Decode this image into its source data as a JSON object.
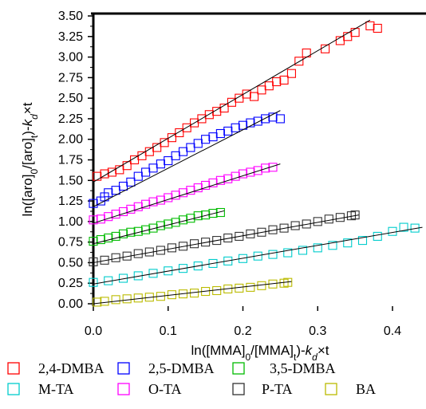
{
  "chart_data": {
    "type": "scatter",
    "xlabel": "ln([MMA]0/[MMA]t)-kd×t",
    "ylabel": "ln([aro]0/[aro]t)-kd×t",
    "xlabel_parts": [
      {
        "t": "ln([MMA]"
      },
      {
        "t": "0",
        "sub": true
      },
      {
        "t": "/[MMA]"
      },
      {
        "t": "t",
        "sub": true
      },
      {
        "t": ")-"
      },
      {
        "t": "k",
        "it": true
      },
      {
        "t": "d",
        "sub": true,
        "it": true
      },
      {
        "t": "×t"
      }
    ],
    "ylabel_parts": [
      {
        "t": "ln([aro]"
      },
      {
        "t": "0",
        "sub": true
      },
      {
        "t": "/[aro]"
      },
      {
        "t": "t",
        "sub": true
      },
      {
        "t": ")-"
      },
      {
        "t": "k",
        "it": true
      },
      {
        "t": "d",
        "sub": true,
        "it": true
      },
      {
        "t": "×t"
      }
    ],
    "xlim": [
      0,
      0.44
    ],
    "ylim": [
      0,
      3.5
    ],
    "xticks": [
      "0.0",
      "0.1",
      "0.2",
      "0.3",
      "0.4"
    ],
    "yticks": [
      "0.00",
      "0.25",
      "0.50",
      "0.75",
      "1.00",
      "1.25",
      "1.50",
      "1.75",
      "2.00",
      "2.25",
      "2.50",
      "2.75",
      "3.00",
      "3.25",
      "3.50"
    ],
    "grid": false,
    "legend_position": "bottom",
    "series": [
      {
        "name": "2,4-DMBA",
        "color": "#ff0000",
        "fit": {
          "x0": 0,
          "y0": 1.48,
          "x1": 0.37,
          "y1": 3.45
        },
        "points": [
          [
            0.005,
            1.55
          ],
          [
            0.015,
            1.58
          ],
          [
            0.025,
            1.6
          ],
          [
            0.035,
            1.63
          ],
          [
            0.045,
            1.68
          ],
          [
            0.055,
            1.75
          ],
          [
            0.065,
            1.8
          ],
          [
            0.075,
            1.85
          ],
          [
            0.085,
            1.9
          ],
          [
            0.095,
            1.96
          ],
          [
            0.105,
            2.02
          ],
          [
            0.115,
            2.08
          ],
          [
            0.125,
            2.14
          ],
          [
            0.135,
            2.2
          ],
          [
            0.145,
            2.25
          ],
          [
            0.155,
            2.3
          ],
          [
            0.165,
            2.34
          ],
          [
            0.175,
            2.38
          ],
          [
            0.185,
            2.45
          ],
          [
            0.195,
            2.5
          ],
          [
            0.205,
            2.55
          ],
          [
            0.215,
            2.52
          ],
          [
            0.225,
            2.6
          ],
          [
            0.235,
            2.65
          ],
          [
            0.245,
            2.7
          ],
          [
            0.255,
            2.72
          ],
          [
            0.265,
            2.8
          ],
          [
            0.275,
            2.95
          ],
          [
            0.285,
            3.05
          ],
          [
            0.31,
            3.1
          ],
          [
            0.33,
            3.2
          ],
          [
            0.34,
            3.25
          ],
          [
            0.35,
            3.3
          ],
          [
            0.37,
            3.38
          ],
          [
            0.38,
            3.35
          ]
        ]
      },
      {
        "name": "2,5-DMBA",
        "color": "#0000ff",
        "fit": {
          "x0": 0,
          "y0": 1.18,
          "x1": 0.25,
          "y1": 2.35
        },
        "points": [
          [
            0.0,
            1.22
          ],
          [
            0.01,
            1.25
          ],
          [
            0.015,
            1.3
          ],
          [
            0.02,
            1.35
          ],
          [
            0.03,
            1.38
          ],
          [
            0.04,
            1.43
          ],
          [
            0.05,
            1.48
          ],
          [
            0.06,
            1.55
          ],
          [
            0.07,
            1.6
          ],
          [
            0.08,
            1.65
          ],
          [
            0.09,
            1.7
          ],
          [
            0.1,
            1.74
          ],
          [
            0.11,
            1.8
          ],
          [
            0.12,
            1.85
          ],
          [
            0.13,
            1.9
          ],
          [
            0.14,
            1.95
          ],
          [
            0.15,
            2.0
          ],
          [
            0.16,
            2.03
          ],
          [
            0.17,
            2.07
          ],
          [
            0.18,
            2.1
          ],
          [
            0.19,
            2.14
          ],
          [
            0.2,
            2.17
          ],
          [
            0.21,
            2.2
          ],
          [
            0.22,
            2.22
          ],
          [
            0.23,
            2.25
          ],
          [
            0.24,
            2.27
          ],
          [
            0.25,
            2.25
          ]
        ]
      },
      {
        "name": "3,5-DMBA",
        "color": "#00bb00",
        "fit": {
          "x0": 0,
          "y0": 0.73,
          "x1": 0.175,
          "y1": 1.13
        },
        "points": [
          [
            0.0,
            0.76
          ],
          [
            0.01,
            0.78
          ],
          [
            0.02,
            0.8
          ],
          [
            0.03,
            0.82
          ],
          [
            0.04,
            0.85
          ],
          [
            0.05,
            0.87
          ],
          [
            0.06,
            0.88
          ],
          [
            0.07,
            0.9
          ],
          [
            0.08,
            0.92
          ],
          [
            0.09,
            0.95
          ],
          [
            0.1,
            0.97
          ],
          [
            0.11,
            0.99
          ],
          [
            0.12,
            1.02
          ],
          [
            0.13,
            1.04
          ],
          [
            0.14,
            1.07
          ],
          [
            0.15,
            1.08
          ],
          [
            0.16,
            1.1
          ],
          [
            0.17,
            1.11
          ]
        ]
      },
      {
        "name": "M-TA",
        "color": "#00cccc",
        "fit": {
          "x0": 0,
          "y0": 0.24,
          "x1": 0.44,
          "y1": 0.93
        },
        "points": [
          [
            0.0,
            0.26
          ],
          [
            0.02,
            0.28
          ],
          [
            0.04,
            0.31
          ],
          [
            0.06,
            0.34
          ],
          [
            0.08,
            0.37
          ],
          [
            0.1,
            0.4
          ],
          [
            0.12,
            0.43
          ],
          [
            0.14,
            0.46
          ],
          [
            0.16,
            0.49
          ],
          [
            0.18,
            0.52
          ],
          [
            0.2,
            0.55
          ],
          [
            0.22,
            0.58
          ],
          [
            0.24,
            0.6
          ],
          [
            0.26,
            0.62
          ],
          [
            0.28,
            0.65
          ],
          [
            0.3,
            0.68
          ],
          [
            0.32,
            0.71
          ],
          [
            0.34,
            0.74
          ],
          [
            0.36,
            0.77
          ],
          [
            0.38,
            0.82
          ],
          [
            0.4,
            0.88
          ],
          [
            0.415,
            0.93
          ],
          [
            0.43,
            0.92
          ]
        ]
      },
      {
        "name": "O-TA",
        "color": "#ff00ff",
        "fit": {
          "x0": 0,
          "y0": 0.98,
          "x1": 0.25,
          "y1": 1.7
        },
        "points": [
          [
            0.0,
            1.02
          ],
          [
            0.01,
            1.03
          ],
          [
            0.02,
            1.06
          ],
          [
            0.03,
            1.09
          ],
          [
            0.04,
            1.12
          ],
          [
            0.05,
            1.15
          ],
          [
            0.06,
            1.18
          ],
          [
            0.07,
            1.21
          ],
          [
            0.08,
            1.24
          ],
          [
            0.09,
            1.26
          ],
          [
            0.1,
            1.29
          ],
          [
            0.11,
            1.32
          ],
          [
            0.12,
            1.35
          ],
          [
            0.13,
            1.38
          ],
          [
            0.14,
            1.41
          ],
          [
            0.15,
            1.44
          ],
          [
            0.16,
            1.47
          ],
          [
            0.17,
            1.5
          ],
          [
            0.18,
            1.52
          ],
          [
            0.19,
            1.55
          ],
          [
            0.2,
            1.58
          ],
          [
            0.21,
            1.6
          ],
          [
            0.22,
            1.62
          ],
          [
            0.23,
            1.65
          ],
          [
            0.24,
            1.66
          ]
        ]
      },
      {
        "name": "P-TA",
        "color": "#333333",
        "fit": {
          "x0": 0,
          "y0": 0.5,
          "x1": 0.355,
          "y1": 1.08
        },
        "points": [
          [
            0.0,
            0.51
          ],
          [
            0.015,
            0.53
          ],
          [
            0.03,
            0.56
          ],
          [
            0.045,
            0.58
          ],
          [
            0.06,
            0.61
          ],
          [
            0.075,
            0.63
          ],
          [
            0.09,
            0.65
          ],
          [
            0.105,
            0.68
          ],
          [
            0.12,
            0.7
          ],
          [
            0.135,
            0.73
          ],
          [
            0.15,
            0.75
          ],
          [
            0.165,
            0.77
          ],
          [
            0.18,
            0.8
          ],
          [
            0.195,
            0.82
          ],
          [
            0.21,
            0.85
          ],
          [
            0.225,
            0.87
          ],
          [
            0.24,
            0.9
          ],
          [
            0.255,
            0.92
          ],
          [
            0.27,
            0.95
          ],
          [
            0.285,
            0.97
          ],
          [
            0.3,
            1.0
          ],
          [
            0.315,
            1.03
          ],
          [
            0.33,
            1.05
          ],
          [
            0.345,
            1.07
          ],
          [
            0.35,
            1.08
          ]
        ]
      },
      {
        "name": "BA",
        "color": "#bbbb00",
        "fit": {
          "x0": 0,
          "y0": 0.0,
          "x1": 0.265,
          "y1": 0.27
        },
        "points": [
          [
            0.005,
            0.02
          ],
          [
            0.015,
            0.03
          ],
          [
            0.03,
            0.05
          ],
          [
            0.045,
            0.06
          ],
          [
            0.06,
            0.07
          ],
          [
            0.075,
            0.08
          ],
          [
            0.09,
            0.09
          ],
          [
            0.105,
            0.11
          ],
          [
            0.12,
            0.12
          ],
          [
            0.135,
            0.13
          ],
          [
            0.15,
            0.15
          ],
          [
            0.165,
            0.16
          ],
          [
            0.18,
            0.18
          ],
          [
            0.195,
            0.19
          ],
          [
            0.21,
            0.2
          ],
          [
            0.225,
            0.22
          ],
          [
            0.24,
            0.24
          ],
          [
            0.255,
            0.25
          ],
          [
            0.26,
            0.26
          ]
        ]
      }
    ]
  }
}
